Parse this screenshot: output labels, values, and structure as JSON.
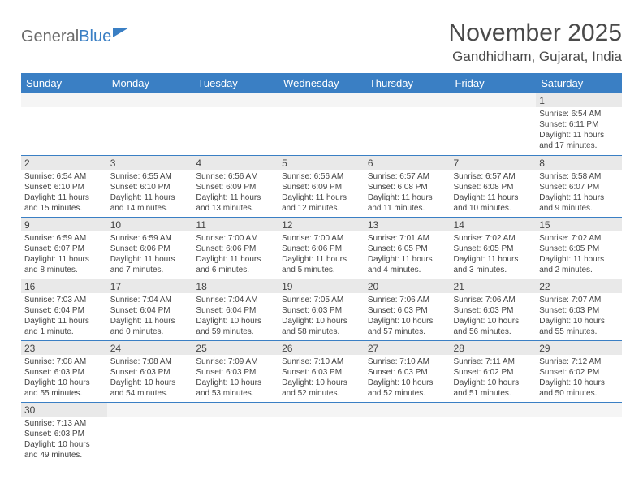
{
  "logo": {
    "text_general": "General",
    "text_blue": "Blue"
  },
  "title": "November 2025",
  "location": "Gandhidham, Gujarat, India",
  "colors": {
    "header_bg": "#3a7fc4",
    "header_text": "#ffffff",
    "daynum_bg": "#e9e9e9",
    "border": "#3a7fc4",
    "text": "#444444",
    "title_text": "#4a4a4a"
  },
  "fonts": {
    "title_size_pt": 22,
    "location_size_pt": 13,
    "header_size_pt": 10,
    "cell_size_pt": 7.5
  },
  "day_headers": [
    "Sunday",
    "Monday",
    "Tuesday",
    "Wednesday",
    "Thursday",
    "Friday",
    "Saturday"
  ],
  "weeks": [
    [
      null,
      null,
      null,
      null,
      null,
      null,
      {
        "n": "1",
        "sr": "Sunrise: 6:54 AM",
        "ss": "Sunset: 6:11 PM",
        "dl": "Daylight: 11 hours and 17 minutes."
      }
    ],
    [
      {
        "n": "2",
        "sr": "Sunrise: 6:54 AM",
        "ss": "Sunset: 6:10 PM",
        "dl": "Daylight: 11 hours and 15 minutes."
      },
      {
        "n": "3",
        "sr": "Sunrise: 6:55 AM",
        "ss": "Sunset: 6:10 PM",
        "dl": "Daylight: 11 hours and 14 minutes."
      },
      {
        "n": "4",
        "sr": "Sunrise: 6:56 AM",
        "ss": "Sunset: 6:09 PM",
        "dl": "Daylight: 11 hours and 13 minutes."
      },
      {
        "n": "5",
        "sr": "Sunrise: 6:56 AM",
        "ss": "Sunset: 6:09 PM",
        "dl": "Daylight: 11 hours and 12 minutes."
      },
      {
        "n": "6",
        "sr": "Sunrise: 6:57 AM",
        "ss": "Sunset: 6:08 PM",
        "dl": "Daylight: 11 hours and 11 minutes."
      },
      {
        "n": "7",
        "sr": "Sunrise: 6:57 AM",
        "ss": "Sunset: 6:08 PM",
        "dl": "Daylight: 11 hours and 10 minutes."
      },
      {
        "n": "8",
        "sr": "Sunrise: 6:58 AM",
        "ss": "Sunset: 6:07 PM",
        "dl": "Daylight: 11 hours and 9 minutes."
      }
    ],
    [
      {
        "n": "9",
        "sr": "Sunrise: 6:59 AM",
        "ss": "Sunset: 6:07 PM",
        "dl": "Daylight: 11 hours and 8 minutes."
      },
      {
        "n": "10",
        "sr": "Sunrise: 6:59 AM",
        "ss": "Sunset: 6:06 PM",
        "dl": "Daylight: 11 hours and 7 minutes."
      },
      {
        "n": "11",
        "sr": "Sunrise: 7:00 AM",
        "ss": "Sunset: 6:06 PM",
        "dl": "Daylight: 11 hours and 6 minutes."
      },
      {
        "n": "12",
        "sr": "Sunrise: 7:00 AM",
        "ss": "Sunset: 6:06 PM",
        "dl": "Daylight: 11 hours and 5 minutes."
      },
      {
        "n": "13",
        "sr": "Sunrise: 7:01 AM",
        "ss": "Sunset: 6:05 PM",
        "dl": "Daylight: 11 hours and 4 minutes."
      },
      {
        "n": "14",
        "sr": "Sunrise: 7:02 AM",
        "ss": "Sunset: 6:05 PM",
        "dl": "Daylight: 11 hours and 3 minutes."
      },
      {
        "n": "15",
        "sr": "Sunrise: 7:02 AM",
        "ss": "Sunset: 6:05 PM",
        "dl": "Daylight: 11 hours and 2 minutes."
      }
    ],
    [
      {
        "n": "16",
        "sr": "Sunrise: 7:03 AM",
        "ss": "Sunset: 6:04 PM",
        "dl": "Daylight: 11 hours and 1 minute."
      },
      {
        "n": "17",
        "sr": "Sunrise: 7:04 AM",
        "ss": "Sunset: 6:04 PM",
        "dl": "Daylight: 11 hours and 0 minutes."
      },
      {
        "n": "18",
        "sr": "Sunrise: 7:04 AM",
        "ss": "Sunset: 6:04 PM",
        "dl": "Daylight: 10 hours and 59 minutes."
      },
      {
        "n": "19",
        "sr": "Sunrise: 7:05 AM",
        "ss": "Sunset: 6:03 PM",
        "dl": "Daylight: 10 hours and 58 minutes."
      },
      {
        "n": "20",
        "sr": "Sunrise: 7:06 AM",
        "ss": "Sunset: 6:03 PM",
        "dl": "Daylight: 10 hours and 57 minutes."
      },
      {
        "n": "21",
        "sr": "Sunrise: 7:06 AM",
        "ss": "Sunset: 6:03 PM",
        "dl": "Daylight: 10 hours and 56 minutes."
      },
      {
        "n": "22",
        "sr": "Sunrise: 7:07 AM",
        "ss": "Sunset: 6:03 PM",
        "dl": "Daylight: 10 hours and 55 minutes."
      }
    ],
    [
      {
        "n": "23",
        "sr": "Sunrise: 7:08 AM",
        "ss": "Sunset: 6:03 PM",
        "dl": "Daylight: 10 hours and 55 minutes."
      },
      {
        "n": "24",
        "sr": "Sunrise: 7:08 AM",
        "ss": "Sunset: 6:03 PM",
        "dl": "Daylight: 10 hours and 54 minutes."
      },
      {
        "n": "25",
        "sr": "Sunrise: 7:09 AM",
        "ss": "Sunset: 6:03 PM",
        "dl": "Daylight: 10 hours and 53 minutes."
      },
      {
        "n": "26",
        "sr": "Sunrise: 7:10 AM",
        "ss": "Sunset: 6:03 PM",
        "dl": "Daylight: 10 hours and 52 minutes."
      },
      {
        "n": "27",
        "sr": "Sunrise: 7:10 AM",
        "ss": "Sunset: 6:03 PM",
        "dl": "Daylight: 10 hours and 52 minutes."
      },
      {
        "n": "28",
        "sr": "Sunrise: 7:11 AM",
        "ss": "Sunset: 6:02 PM",
        "dl": "Daylight: 10 hours and 51 minutes."
      },
      {
        "n": "29",
        "sr": "Sunrise: 7:12 AM",
        "ss": "Sunset: 6:02 PM",
        "dl": "Daylight: 10 hours and 50 minutes."
      }
    ],
    [
      {
        "n": "30",
        "sr": "Sunrise: 7:13 AM",
        "ss": "Sunset: 6:03 PM",
        "dl": "Daylight: 10 hours and 49 minutes."
      },
      null,
      null,
      null,
      null,
      null,
      null
    ]
  ]
}
